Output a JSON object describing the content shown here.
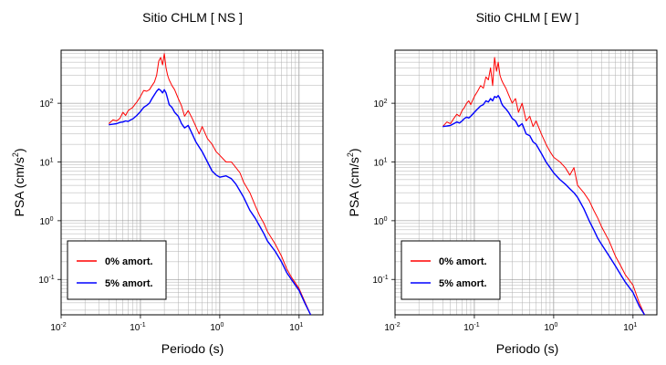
{
  "chart_data": [
    {
      "type": "line",
      "title": "Sitio CHLM [ NS ]",
      "xlabel": "Periodo (s)",
      "ylabel": "PSA (cm/s2)",
      "xscale": "log",
      "yscale": "log",
      "xlim": [
        0.01,
        20
      ],
      "ylim": [
        0.025,
        800
      ],
      "x_ticks": [
        {
          "base": "10",
          "exp": "-2"
        },
        {
          "base": "10",
          "exp": "-1"
        },
        {
          "base": "10",
          "exp": "0"
        },
        {
          "base": "10",
          "exp": "1"
        }
      ],
      "y_ticks": [
        {
          "base": "10",
          "exp": "-1"
        },
        {
          "base": "10",
          "exp": "0"
        },
        {
          "base": "10",
          "exp": "1"
        },
        {
          "base": "10",
          "exp": "2"
        }
      ],
      "grid": true,
      "legend_position": "bottom-left",
      "series": [
        {
          "name": "0% amort.",
          "color": "#ff0000",
          "x": [
            0.04,
            0.045,
            0.05,
            0.055,
            0.06,
            0.065,
            0.07,
            0.075,
            0.08,
            0.085,
            0.09,
            0.1,
            0.11,
            0.12,
            0.13,
            0.14,
            0.15,
            0.16,
            0.17,
            0.18,
            0.19,
            0.2,
            0.21,
            0.22,
            0.23,
            0.25,
            0.27,
            0.3,
            0.33,
            0.36,
            0.4,
            0.45,
            0.5,
            0.55,
            0.6,
            0.7,
            0.8,
            0.9,
            1.0,
            1.2,
            1.4,
            1.6,
            1.8,
            2.0,
            2.4,
            2.8,
            3.2,
            3.6,
            4.0,
            5.0,
            6.0,
            7.0,
            8.0,
            10.0,
            12.0,
            14.0
          ],
          "y": [
            45,
            52,
            50,
            55,
            70,
            62,
            75,
            80,
            85,
            95,
            105,
            130,
            165,
            160,
            170,
            200,
            230,
            300,
            520,
            600,
            450,
            700,
            400,
            300,
            250,
            200,
            170,
            120,
            90,
            60,
            75,
            55,
            40,
            30,
            40,
            25,
            20,
            15,
            13,
            10,
            10,
            8,
            6.5,
            4.5,
            3,
            1.8,
            1.2,
            0.9,
            0.65,
            0.4,
            0.25,
            0.15,
            0.11,
            0.07,
            0.04,
            0.025
          ]
        },
        {
          "name": "5% amort.",
          "color": "#0000ff",
          "x": [
            0.04,
            0.045,
            0.05,
            0.055,
            0.06,
            0.065,
            0.07,
            0.075,
            0.08,
            0.085,
            0.09,
            0.1,
            0.11,
            0.12,
            0.13,
            0.14,
            0.15,
            0.16,
            0.17,
            0.18,
            0.19,
            0.2,
            0.21,
            0.22,
            0.23,
            0.25,
            0.27,
            0.3,
            0.33,
            0.36,
            0.4,
            0.45,
            0.5,
            0.55,
            0.6,
            0.7,
            0.8,
            0.9,
            1.0,
            1.2,
            1.4,
            1.6,
            1.8,
            2.0,
            2.4,
            2.8,
            3.2,
            3.6,
            4.0,
            5.0,
            6.0,
            7.0,
            8.0,
            10.0,
            12.0,
            14.0
          ],
          "y": [
            43,
            44,
            45,
            47,
            48,
            50,
            49,
            52,
            54,
            58,
            62,
            72,
            85,
            92,
            100,
            120,
            140,
            160,
            175,
            165,
            150,
            170,
            150,
            120,
            95,
            85,
            70,
            60,
            45,
            38,
            42,
            30,
            22,
            18,
            15,
            10,
            7,
            6,
            5.5,
            5.8,
            5.2,
            4.2,
            3.2,
            2.5,
            1.5,
            1.1,
            0.8,
            0.6,
            0.45,
            0.3,
            0.2,
            0.13,
            0.1,
            0.065,
            0.038,
            0.025
          ]
        }
      ]
    },
    {
      "type": "line",
      "title": "Sitio CHLM [ EW ]",
      "xlabel": "Periodo (s)",
      "ylabel": "PSA (cm/s2)",
      "xscale": "log",
      "yscale": "log",
      "xlim": [
        0.01,
        20
      ],
      "ylim": [
        0.025,
        800
      ],
      "x_ticks": [
        {
          "base": "10",
          "exp": "-2"
        },
        {
          "base": "10",
          "exp": "-1"
        },
        {
          "base": "10",
          "exp": "0"
        },
        {
          "base": "10",
          "exp": "1"
        }
      ],
      "y_ticks": [
        {
          "base": "10",
          "exp": "-1"
        },
        {
          "base": "10",
          "exp": "0"
        },
        {
          "base": "10",
          "exp": "1"
        },
        {
          "base": "10",
          "exp": "2"
        }
      ],
      "grid": true,
      "legend_position": "bottom-left",
      "series": [
        {
          "name": "0% amort.",
          "color": "#ff0000",
          "x": [
            0.04,
            0.045,
            0.05,
            0.055,
            0.06,
            0.065,
            0.07,
            0.075,
            0.08,
            0.085,
            0.09,
            0.1,
            0.11,
            0.12,
            0.13,
            0.14,
            0.15,
            0.16,
            0.17,
            0.18,
            0.19,
            0.2,
            0.21,
            0.22,
            0.23,
            0.25,
            0.27,
            0.3,
            0.33,
            0.36,
            0.4,
            0.45,
            0.5,
            0.55,
            0.6,
            0.7,
            0.8,
            0.9,
            1.0,
            1.2,
            1.4,
            1.6,
            1.8,
            2.0,
            2.4,
            2.8,
            3.2,
            3.6,
            4.0,
            5.0,
            6.0,
            7.0,
            8.0,
            10.0,
            12.0,
            14.0
          ],
          "y": [
            40,
            48,
            45,
            55,
            65,
            60,
            75,
            85,
            100,
            110,
            95,
            130,
            160,
            200,
            180,
            280,
            250,
            400,
            200,
            600,
            350,
            500,
            300,
            250,
            220,
            180,
            140,
            100,
            120,
            70,
            100,
            50,
            60,
            40,
            50,
            30,
            20,
            15,
            12,
            10,
            8,
            6,
            8,
            4,
            3,
            2.2,
            1.5,
            1.1,
            0.8,
            0.45,
            0.25,
            0.17,
            0.12,
            0.08,
            0.04,
            0.025
          ]
        },
        {
          "name": "5% amort.",
          "color": "#0000ff",
          "x": [
            0.04,
            0.045,
            0.05,
            0.055,
            0.06,
            0.065,
            0.07,
            0.075,
            0.08,
            0.085,
            0.09,
            0.1,
            0.11,
            0.12,
            0.13,
            0.14,
            0.15,
            0.16,
            0.17,
            0.18,
            0.19,
            0.2,
            0.21,
            0.22,
            0.23,
            0.25,
            0.27,
            0.3,
            0.33,
            0.36,
            0.4,
            0.45,
            0.5,
            0.55,
            0.6,
            0.7,
            0.8,
            0.9,
            1.0,
            1.2,
            1.4,
            1.6,
            1.8,
            2.0,
            2.4,
            2.8,
            3.2,
            3.6,
            4.0,
            5.0,
            6.0,
            7.0,
            8.0,
            10.0,
            12.0,
            14.0
          ],
          "y": [
            40,
            41,
            42,
            45,
            48,
            46,
            50,
            55,
            58,
            56,
            60,
            70,
            80,
            90,
            95,
            110,
            105,
            120,
            110,
            130,
            125,
            135,
            120,
            100,
            90,
            80,
            70,
            55,
            50,
            40,
            45,
            30,
            28,
            22,
            20,
            14,
            10,
            8,
            6.5,
            5,
            4.2,
            3.5,
            3,
            2.5,
            1.6,
            1.0,
            0.7,
            0.5,
            0.4,
            0.25,
            0.17,
            0.12,
            0.09,
            0.06,
            0.035,
            0.025
          ]
        }
      ]
    }
  ]
}
